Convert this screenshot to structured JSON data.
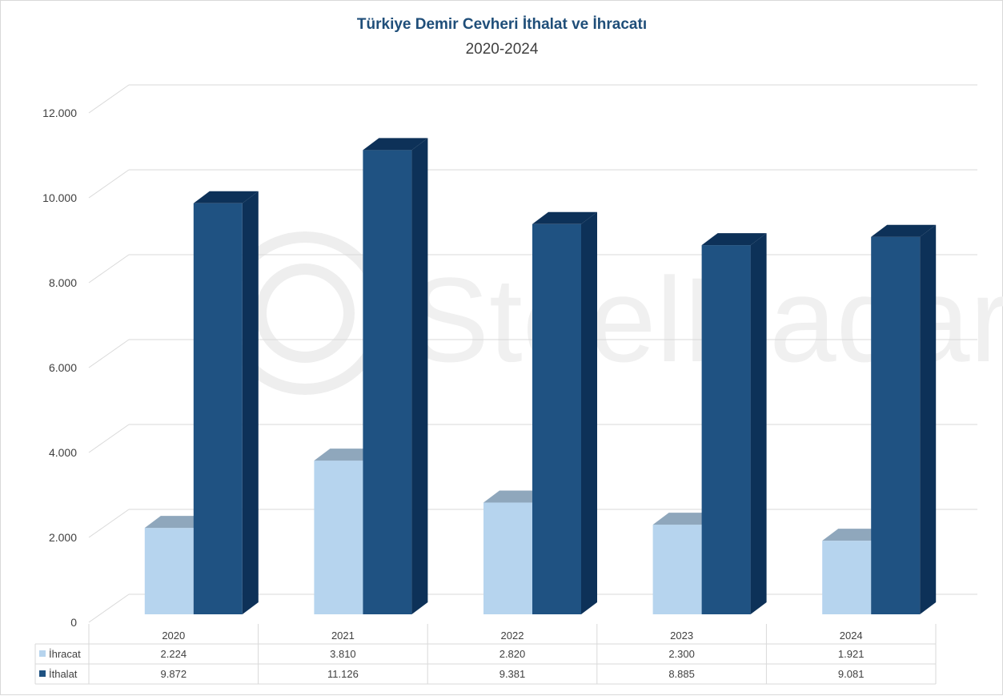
{
  "chart_data": {
    "type": "bar",
    "title": "Türkiye Demir Cevheri İthalat ve İhracatı",
    "subtitle": "2020-2024",
    "categories": [
      "2020",
      "2021",
      "2022",
      "2023",
      "2024"
    ],
    "series": [
      {
        "name": "İhracat",
        "values": [
          2224,
          3810,
          2820,
          2300,
          1921
        ],
        "labels": [
          "2.224",
          "3.810",
          "2.820",
          "2.300",
          "1.921"
        ]
      },
      {
        "name": "İthalat",
        "values": [
          9872,
          11126,
          9381,
          8885,
          9081
        ],
        "labels": [
          "9.872",
          "11.126",
          "9.381",
          "8.885",
          "9.081"
        ]
      }
    ],
    "ylim": [
      0,
      12000
    ],
    "yticks": [
      0,
      2000,
      4000,
      6000,
      8000,
      10000,
      12000
    ],
    "ytick_labels": [
      "0",
      "2.000",
      "4.000",
      "6.000",
      "8.000",
      "10.000",
      "12.000"
    ],
    "grid": true,
    "legend": "data-table",
    "colors": {
      "İhracat": "#b6d4ee",
      "İthalat": "#1f5282",
      "title": "#1f4e79"
    },
    "watermark": "SteelRadar"
  }
}
